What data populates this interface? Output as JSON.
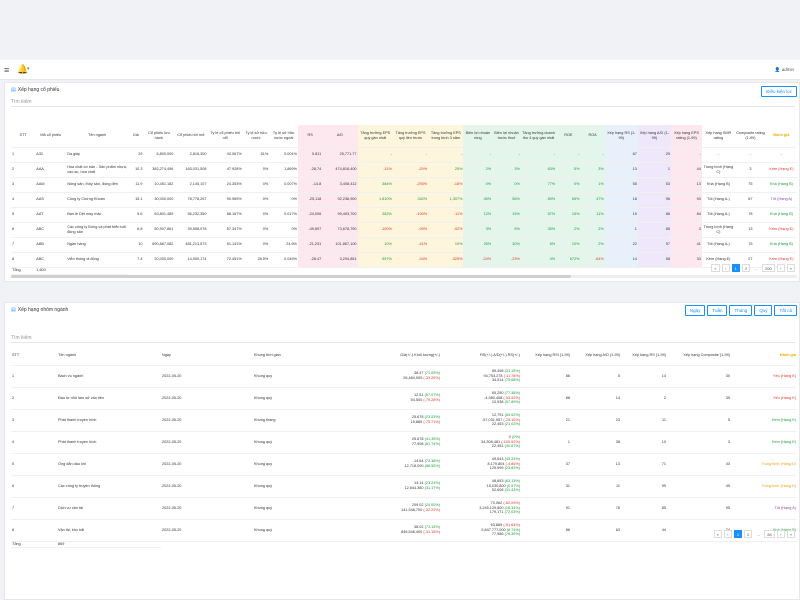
{
  "topbar": {
    "menu_icon": "menu-icon",
    "bell_icon": "bell-icon",
    "user": "admin"
  },
  "stock_card": {
    "title": "Xếp hạng cổ phiếu",
    "adv_button": "Điều kiện lọc",
    "search_placeholder": "Tìm kiếm",
    "headers": [
      "STT",
      "Mã cổ phiếu",
      "Tên ngành",
      "Giá",
      "Cổ phiếu lưu hành",
      "Cổ phiếu tới mở",
      "Tỷ lệ cổ phiếu trôi nổi",
      "Tỷ lệ sở hữu nước",
      "Tỷ lệ sở hữu nước ngoài",
      "RS",
      "A/D",
      "Tăng trưởng EPS quý gần nhất",
      "Tăng trưởng EPS quý liền trước",
      "Tăng trưởng EPS trung bình 3 năm",
      "Biên lợi nhuận ròng",
      "Biên lợi nhuận trước thuế",
      "Tăng trưởng doanh thu 4 quý gần nhất",
      "ROE",
      "ROA",
      "Xếp hạng RS (1-99)",
      "Xếp hạng A/D (1-99)",
      "Xếp hạng EPS rating (1-99)",
      "Xếp hạng SMR rating",
      "Composite rating (1-99)",
      "Đánh giá"
    ],
    "rows": [
      [
        "1",
        "A32",
        "Da giày",
        "29",
        "6,800,000",
        "2,816,300",
        "42.067%",
        "51%",
        "0.001%",
        "0.811",
        "25,771.77",
        "-",
        "-",
        "-",
        "-",
        "-",
        "-",
        "-",
        "-",
        "67",
        "25",
        "-",
        "-",
        "-",
        "-"
      ],
      [
        "2",
        "AAA",
        "Hóa chất cơ bản - Sản phẩm nhựa, cao su, hóa chất",
        "10.3",
        "382,274,496",
        "183,031,508",
        "47.928%",
        "0%",
        "1,869%",
        "-28,74",
        "474,818,400",
        "-11%",
        "-20%",
        "25%",
        "2%",
        "3%",
        "63%",
        "5%",
        "3%",
        "13",
        "1",
        "44",
        "Trung bình (Hạng C)",
        "3",
        "Kém (Hạng E)"
      ],
      [
        "3",
        "AAM",
        "Nông sản, thủy sản, đóng đến",
        "11.9",
        "10,451,182",
        "2,145,107",
        "24.353%",
        "0%",
        "0.007%",
        "-14.8",
        "3,408,412",
        "384%",
        "-293%",
        "-18%",
        "0%",
        "0%",
        "77%",
        "0%",
        "1%",
        "55",
        "53",
        "13",
        "Khá (Hạng B)",
        "75",
        "Khá (Hạng B)"
      ],
      [
        "4",
        "AAS",
        "Công ty Chứng Khoán",
        "15.1",
        "30,000,000",
        "78,778,267",
        "90.969%",
        "0%",
        "0%",
        "-25,118",
        "92,238,900",
        "1,810%",
        "342%",
        "1,307%",
        "45%",
        "56%",
        "89%",
        "65%",
        "47%",
        "18",
        "96",
        "93",
        "Tốt (Hạng A-)",
        "87",
        "Tốt (Hạng A)"
      ],
      [
        "5",
        "AAT",
        "Bán lẻ Dệt may mặc",
        "9.6",
        "63,801,489",
        "56,232,350",
        "88.167%",
        "0%",
        "0.017%",
        "-24,006",
        "99,493,700",
        "282%",
        "-100%",
        "-11%",
        "12%",
        "15%",
        "57%",
        "15%",
        "11%",
        "19",
        "86",
        "84",
        "Tốt (Hạng A-)",
        "78",
        "Khá (Hạng B)"
      ],
      [
        "6",
        "ABC",
        "Các công ty Đóng và phát triển bất động sản",
        "6.8",
        "50,907,861",
        "39,558,078",
        "57.347%",
        "0%",
        "0%",
        "-49,897",
        "73,678,790",
        "-100%",
        "-99%",
        "-92%",
        "3%",
        "5%",
        "35%",
        "2%",
        "2%",
        "1",
        "85",
        "3",
        "Trung bình (Hạng C)",
        "13",
        "Kém (Hạng E)"
      ],
      [
        "7",
        "ABB",
        "Ngân hàng",
        "10",
        "690,867,082",
        "481,213,573",
        "51.141%",
        "0%",
        "24.6%",
        "-21,231",
        "101,867,100",
        "10%",
        "-41%",
        "19%",
        "25%",
        "30%",
        "8%",
        "10%",
        "2%",
        "22",
        "97",
        "41",
        "Tốt (Hạng A-)",
        "75",
        "Khá (Hạng B)"
      ],
      [
        "8",
        "ABC",
        "Viễn thông di động",
        "7.4",
        "20,000,000",
        "14,550,174",
        "72.451%",
        "28.5%",
        "0.045%",
        "-28.47",
        "3,294,851",
        "597%",
        "-34%",
        "-325%",
        "-24%",
        "-23%",
        "4%",
        "672%",
        "-64%",
        "14",
        "58",
        "33",
        "Kém (Hạng E)",
        "27",
        "Kém (Hạng E)"
      ]
    ],
    "total_label": "Tổng",
    "total_value": "1,600",
    "pager": [
      "«",
      "‹",
      "1",
      "2",
      "...",
      "200",
      "›",
      "»"
    ]
  },
  "industry_card": {
    "title": "Xếp hạng nhóm ngành",
    "filters": [
      "Ngày",
      "Tuần",
      "Tháng",
      "Quý",
      "Tất cả"
    ],
    "search_placeholder": "Tìm kiếm",
    "headers": [
      "STT",
      "Tên ngành",
      "Ngày",
      "Khung thời gian",
      "Giá(+/-) Khối lượng(+/-)",
      "RS(+/-) A/D(+/-) RS(+/-)",
      "Xếp hạng RSI (1-99)",
      "Xếp hạng A/D (1-99)",
      "Xếp hạng RS (1-99)",
      "Xếp hạng Composite (1-99)",
      "Đánh giá"
    ],
    "rows": [
      {
        "stt": "1",
        "name": "Bách vù ngành",
        "date": "2022-05-20",
        "frame": "Khung quý",
        "p1": "38.47",
        "p1c": "(71.05%)",
        "p2": "26,484,900",
        "p2c": "(-33.26%)",
        "r1": "89,498",
        "r1c": "(31.15%)",
        "r2": "94,753,278",
        "r2c": "(-11.78%)",
        "r3": "34,514",
        "r3c": "(75.68%)",
        "rsi": "86",
        "ad": "5",
        "rs": "14",
        "comp": "30",
        "rating": "Yếu (Hạng E)",
        "rcls": "red"
      },
      {
        "stt": "2",
        "name": "Đầu tư nhỏ làm sử vào tiền",
        "date": "2022-05-20",
        "frame": "Khung quý",
        "p1": "12.51",
        "p1c": "(57.07%)",
        "p2": "54,500",
        "p2c": "(-79.28%)",
        "r1": "65,250",
        "r1c": "(77.38%)",
        "r2": "-4,980,458",
        "r2c": "(-53.42%)",
        "r3": "10,938",
        "r3c": "(57.89%)",
        "rsi": "88",
        "ad": "14",
        "rs": "2",
        "comp": "35",
        "rating": "Yếu (Hạng E)",
        "rcls": "red"
      },
      {
        "stt": "3",
        "name": "Phát thanh truyền hình",
        "date": "2022-05-20",
        "frame": "Khung tháng",
        "p1": "25.678",
        "p1c": "(23.53%)",
        "p2": "15,889",
        "p2c": "(-75.71%)",
        "r1": "12,791",
        "r1c": "(63.52%)",
        "r2": "-57,031,557",
        "r2c": "(-25.16%)",
        "r3": "22,453",
        "r3c": "(21.02%)",
        "rsi": "21",
        "ad": "23",
        "rs": "11",
        "comp": "5",
        "rating": "Kém (Hạng E)",
        "rcls": "green"
      },
      {
        "stt": "4",
        "name": "Phát thanh truyền hình",
        "date": "2022-05-20",
        "frame": "Khung quý",
        "p1": "25.678",
        "p1c": "(41.35%)",
        "p2": "77,908",
        "p2c": "(81.74%)",
        "r1": "0",
        "r1c": "(0%)",
        "r2": "34,308,481",
        "r2c": "(-100.52%)",
        "r3": "22,451",
        "r3c": "(40.67%)",
        "rsi": "1",
        "ad": "38",
        "rs": "10",
        "comp": "3",
        "rating": "Kém (Hạng E)",
        "rcls": "green"
      },
      {
        "stt": "5",
        "name": "Ống dẫn dầu khí",
        "date": "2022-05-20",
        "frame": "Khung quý",
        "p1": "14.64",
        "p1c": "(73.38%)",
        "p2": "12,718,000",
        "p2c": "(86.55%)",
        "r1": "49,643",
        "r1c": "(43.33%)",
        "r2": "8,179,804",
        "r2c": "(-4.86%)",
        "r3": "129,999",
        "r3c": "(23.83%)",
        "rsi": "37",
        "ad": "13",
        "rs": "71",
        "comp": "43",
        "rating": "Trung bình (Hạng D)",
        "rcls": "orange"
      },
      {
        "stt": "6",
        "name": "Các công ty truyền thông",
        "date": "2022-05-20",
        "frame": "Khung quý",
        "p1": "14.14",
        "p1c": "(23.24%)",
        "p2": "12,644,380",
        "p2c": "(31.17%)",
        "r1": "48,653",
        "r1c": "(63.13%)",
        "r2": "15,030,800",
        "r2c": "(0.57%)",
        "r3": "52,608",
        "r3c": "(31.43%)",
        "rsi": "31",
        "ad": "11",
        "rs": "99",
        "comp": "45",
        "rating": "Trung bình (Hạng D)",
        "rcls": "orange"
      },
      {
        "stt": "7",
        "name": "Dịch vụ vận tải",
        "date": "2022-05-20",
        "frame": "Khung quý",
        "p1": "209.02",
        "p1c": "(24.00%)",
        "p2": "141,948,700",
        "p2c": "(-32.22%)",
        "r1": "70,062",
        "r1c": "(-82.09%)",
        "r2": "3,245,129,800",
        "r2c": "(18.34%)",
        "r3": "179,171",
        "r3c": "(72.03%)",
        "rsi": "91",
        "ad": "76",
        "rs": "85",
        "comp": "95",
        "rating": "Tốt (Hạng A)",
        "rcls": "purple"
      },
      {
        "stt": "8",
        "name": "Vận tải, kho bãi",
        "date": "2022-05-20",
        "frame": "Khung quý",
        "p1": "38.02",
        "p1c": "(71.15%)",
        "p2": "846,548,400",
        "p2c": "(-31.15%)",
        "r1": "63,889",
        "r1c": "(-51.64%)",
        "r2": "5,847,777,000",
        "r2c": "(8.74%)",
        "r3": "77,986",
        "r3c": "(76.39%)",
        "rsi": "86",
        "ad": "63",
        "rs": "44",
        "comp": "74",
        "rating": "Khá (Hạng B)",
        "rcls": "green"
      }
    ],
    "total_label": "Tổng",
    "total_value": "869",
    "pager": [
      "«",
      "‹",
      "1",
      "2",
      "...",
      "84",
      "›",
      "»"
    ]
  },
  "colors": {
    "accent": "#1890ff",
    "rating_header": "#f4a800",
    "positive": "#1a9a3b",
    "negative": "#e0342c"
  }
}
